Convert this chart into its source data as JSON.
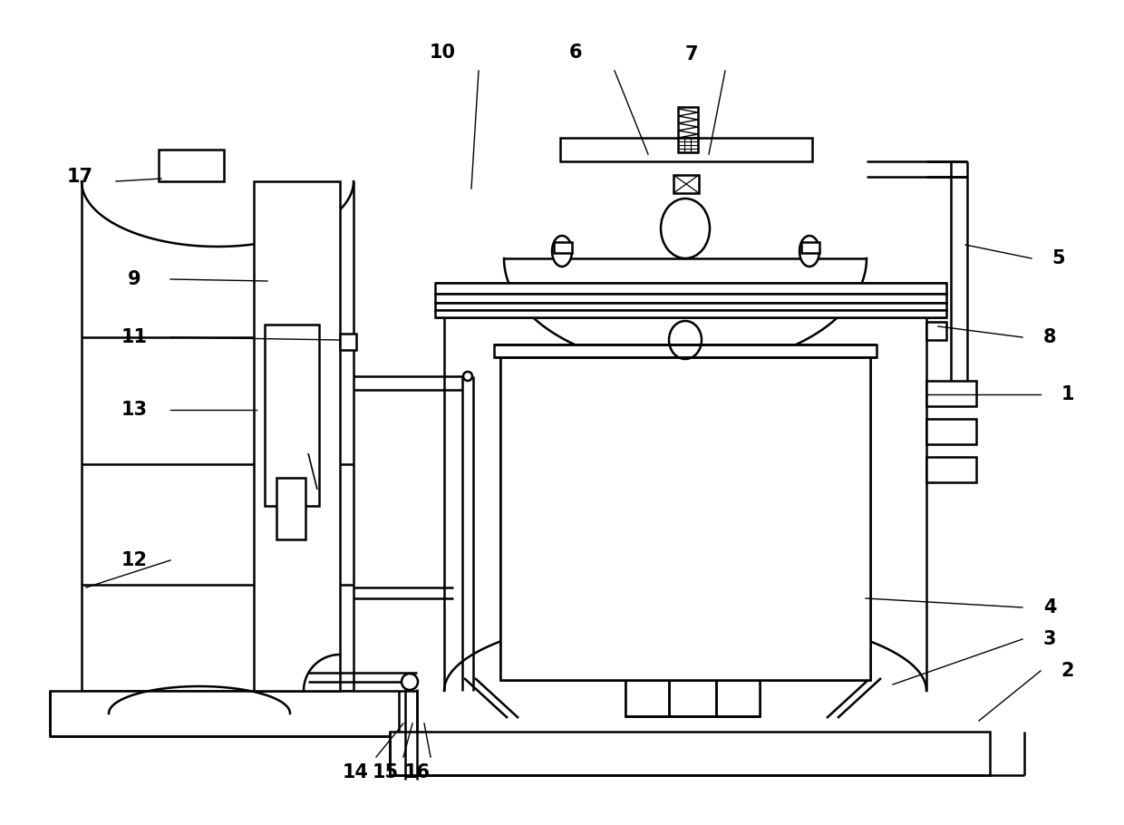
{
  "bg": "#ffffff",
  "lc": "#000000",
  "lw": 1.8,
  "labels": [
    [
      "1",
      1178,
      435
    ],
    [
      "2",
      1178,
      740
    ],
    [
      "3",
      1158,
      705
    ],
    [
      "4",
      1158,
      670
    ],
    [
      "5",
      1168,
      285
    ],
    [
      "6",
      635,
      58
    ],
    [
      "7",
      763,
      60
    ],
    [
      "8",
      1158,
      372
    ],
    [
      "9",
      148,
      308
    ],
    [
      "10",
      488,
      58
    ],
    [
      "11",
      148,
      372
    ],
    [
      "12",
      148,
      618
    ],
    [
      "13",
      148,
      452
    ],
    [
      "14",
      392,
      852
    ],
    [
      "15",
      425,
      852
    ],
    [
      "16",
      460,
      852
    ],
    [
      "17",
      88,
      195
    ]
  ],
  "label_lines": [
    [
      "1",
      1148,
      435,
      1022,
      435
    ],
    [
      "2",
      1148,
      740,
      1080,
      795
    ],
    [
      "3",
      1128,
      705,
      985,
      755
    ],
    [
      "4",
      1128,
      670,
      955,
      660
    ],
    [
      "5",
      1138,
      285,
      1065,
      270
    ],
    [
      "6",
      678,
      78,
      715,
      170
    ],
    [
      "7",
      800,
      78,
      782,
      170
    ],
    [
      "8",
      1128,
      372,
      1035,
      360
    ],
    [
      "9",
      188,
      308,
      295,
      310
    ],
    [
      "10",
      528,
      78,
      520,
      208
    ],
    [
      "11",
      188,
      372,
      375,
      375
    ],
    [
      "12",
      188,
      618,
      95,
      648
    ],
    [
      "13",
      188,
      452,
      283,
      452
    ],
    [
      "14",
      415,
      835,
      445,
      798
    ],
    [
      "15",
      445,
      835,
      455,
      798
    ],
    [
      "16",
      475,
      835,
      468,
      798
    ],
    [
      "17",
      128,
      200,
      178,
      197
    ]
  ]
}
